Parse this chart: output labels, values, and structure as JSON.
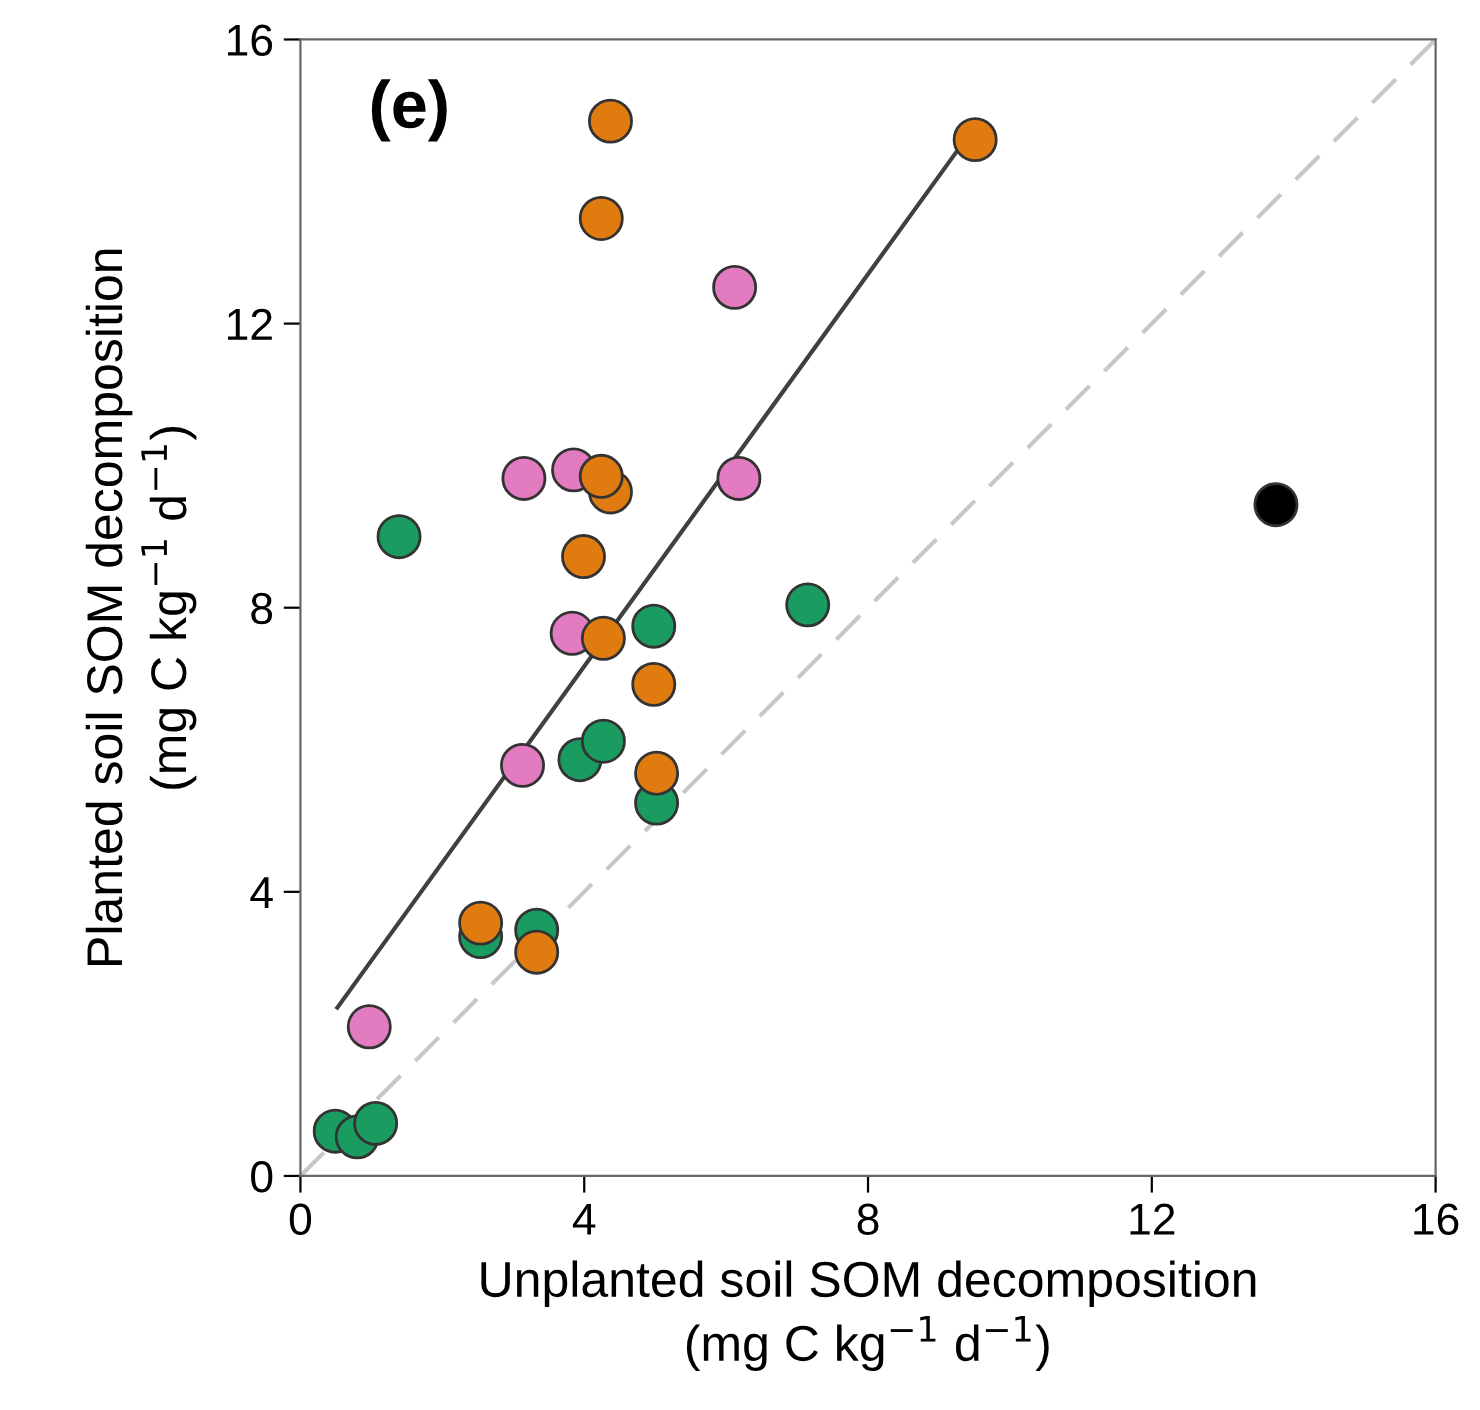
{
  "chart_data": {
    "type": "scatter",
    "xlabel": "Unplanted soil SOM decomposition\n(mg C kg$^{−1}$ d$^{−1}$)",
    "ylabel": "Planted soil SOM decomposition\n(mg C kg$^{−1}$ d$^{−1}$)",
    "annotations": [
      "(e)"
    ],
    "xlim": [
      0,
      16
    ],
    "ylim": [
      0,
      16
    ],
    "xticks": [
      0,
      4,
      8,
      12,
      16
    ],
    "yticks": [
      0,
      4,
      8,
      12,
      16
    ],
    "grid": false,
    "legend": false,
    "series": [
      {
        "type": "line",
        "color": "#c8c8c8",
        "line_style": "dashed",
        "marker": "none",
        "x": [
          0,
          16
        ],
        "values": [
          0,
          16
        ]
      },
      {
        "type": "line",
        "color": "#404040",
        "line_style": "solid",
        "marker": "none",
        "x": [
          0.52,
          9.27
        ],
        "values": [
          2.37,
          14.45
        ]
      },
      {
        "color": "#e37bc0",
        "marker": "circle",
        "x": [
          6.12,
          3.15,
          3.85,
          6.18,
          3.83,
          3.13,
          0.97
        ],
        "values": [
          12.51,
          9.82,
          9.94,
          9.82,
          7.64,
          5.78,
          2.1
        ]
      },
      {
        "color": "#1a9b60",
        "marker": "circle",
        "x": [
          1.39,
          7.15,
          4.98,
          3.94,
          4.27,
          5.02,
          2.54,
          3.33,
          0.49,
          0.8,
          1.06
        ],
        "values": [
          9.0,
          8.04,
          7.74,
          5.86,
          6.12,
          5.25,
          3.37,
          3.46,
          0.63,
          0.55,
          0.74
        ]
      },
      {
        "color": "#e07b10",
        "marker": "circle",
        "x": [
          4.37,
          4.24,
          4.37,
          4.24,
          3.99,
          4.27,
          4.98,
          5.02,
          2.54,
          3.33,
          9.51
        ],
        "values": [
          14.85,
          13.48,
          9.63,
          9.85,
          8.72,
          7.57,
          6.92,
          5.67,
          3.56,
          3.15,
          14.59
        ]
      },
      {
        "color": "#000000",
        "marker": "circle",
        "x": [
          13.75
        ],
        "values": [
          9.45
        ]
      }
    ]
  }
}
